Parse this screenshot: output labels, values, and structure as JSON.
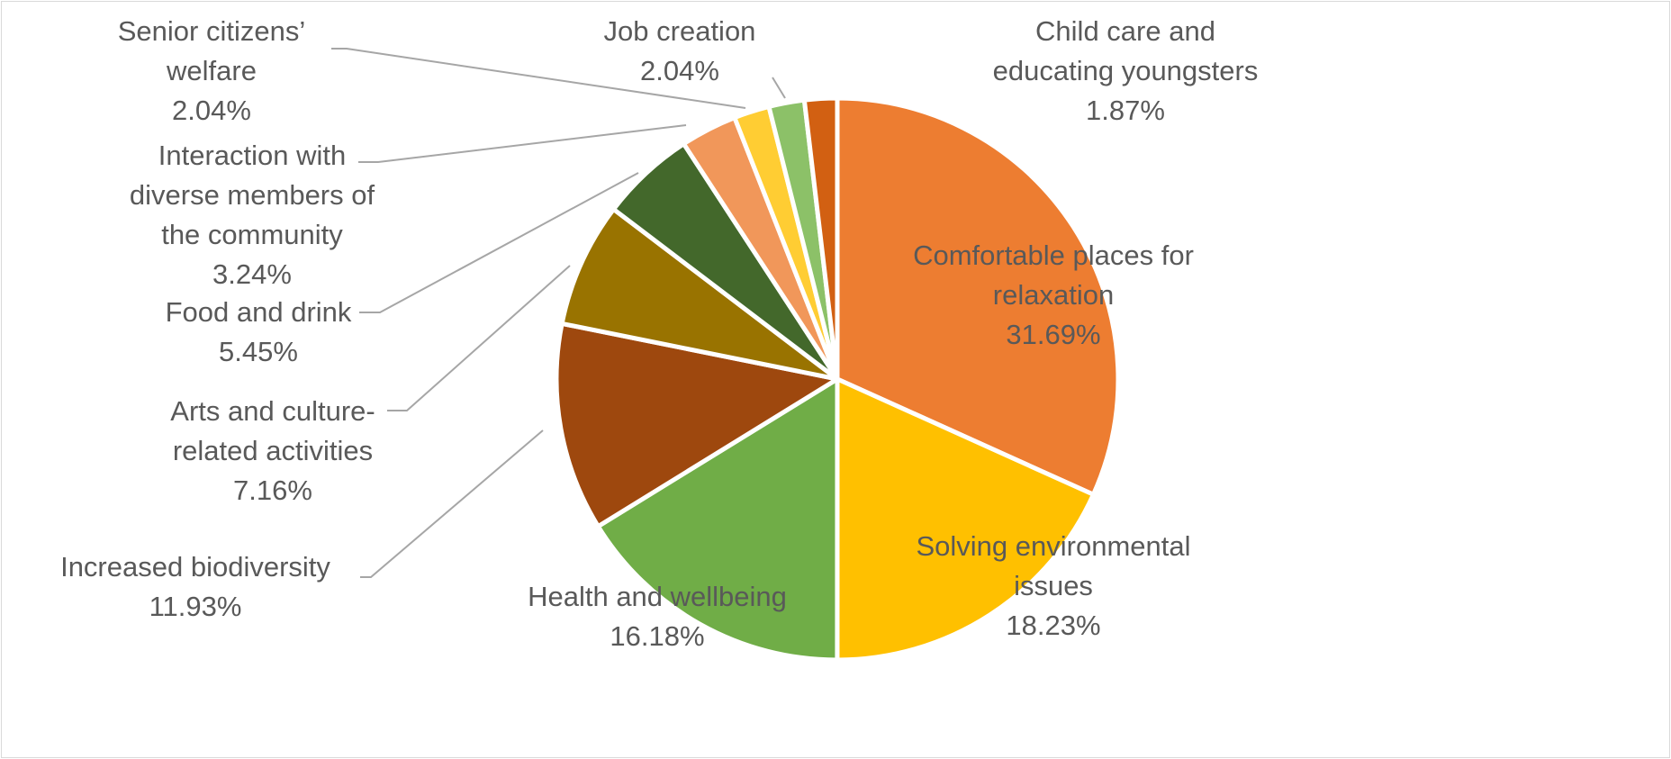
{
  "chart_data": {
    "type": "pie",
    "slices": [
      {
        "label": "Comfortable places for relaxation",
        "label_lines": [
          "Comfortable places for",
          "relaxation"
        ],
        "value_text": "31.69%",
        "value": 31.69,
        "color": "#ed7d31"
      },
      {
        "label": "Solving environmental issues",
        "label_lines": [
          "Solving environmental",
          "issues"
        ],
        "value_text": "18.23%",
        "value": 18.23,
        "color": "#ffc000"
      },
      {
        "label": "Health and wellbeing",
        "label_lines": [
          "Health and wellbeing"
        ],
        "value_text": "16.18%",
        "value": 16.18,
        "color": "#70ad47"
      },
      {
        "label": "Increased biodiversity",
        "label_lines": [
          "Increased biodiversity"
        ],
        "value_text": "11.93%",
        "value": 11.93,
        "color": "#9e480e"
      },
      {
        "label": "Arts and culture-related activities",
        "label_lines": [
          "Arts and culture-",
          "related activities"
        ],
        "value_text": "7.16%",
        "value": 7.16,
        "color": "#997300"
      },
      {
        "label": "Food and drink",
        "label_lines": [
          "Food and drink"
        ],
        "value_text": "5.45%",
        "value": 5.45,
        "color": "#43682b"
      },
      {
        "label": "Interaction with diverse members of the community",
        "label_lines": [
          "Interaction with",
          "diverse members of",
          "the community"
        ],
        "value_text": "3.24%",
        "value": 3.24,
        "color": "#f1975a"
      },
      {
        "label": "Senior citizens’ welfare",
        "label_lines": [
          "Senior citizens’",
          "welfare"
        ],
        "value_text": "2.04%",
        "value": 2.04,
        "color": "#ffcd33"
      },
      {
        "label": "Job creation",
        "label_lines": [
          "Job creation"
        ],
        "value_text": "2.04%",
        "value": 2.04,
        "color": "#8cc168"
      },
      {
        "label": "Child care and educating youngsters",
        "label_lines": [
          "Child care and",
          "educating youngsters"
        ],
        "value_text": "1.87%",
        "value": 1.87,
        "color": "#d26012"
      }
    ],
    "start_angle": "12 o'clock",
    "direction": "clockwise",
    "legend": "none"
  }
}
